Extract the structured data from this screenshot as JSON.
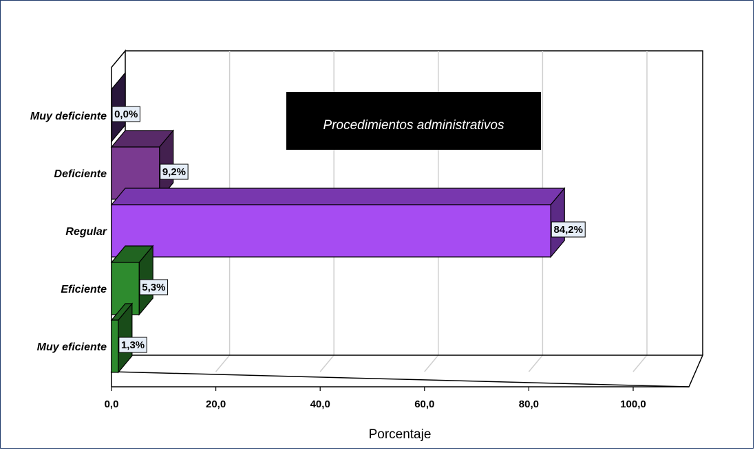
{
  "chart_data": {
    "type": "bar",
    "orientation": "horizontal",
    "title": "Procedimientos administrativos",
    "xlabel": "Porcentaje",
    "ylabel": "",
    "xlim": [
      0,
      100
    ],
    "ticks": [
      "0,0",
      "20,0",
      "40,0",
      "60,0",
      "80,0",
      "100,0"
    ],
    "tick_values": [
      0,
      20,
      40,
      60,
      80,
      100
    ],
    "categories": [
      "Muy deficiente",
      "Deficiente",
      "Regular",
      "Eficiente",
      "Muy eficiente"
    ],
    "values": [
      0.0,
      9.2,
      84.2,
      5.3,
      1.3
    ],
    "data_labels": [
      "0,0%",
      "9,2%",
      "84,2%",
      "5,3%",
      "1,3%"
    ],
    "colors": [
      "#4a2a6b",
      "#7a3a90",
      "#a64cf2",
      "#2e8b2e",
      "#2e8b2e"
    ],
    "grid": true,
    "legend": "none"
  }
}
